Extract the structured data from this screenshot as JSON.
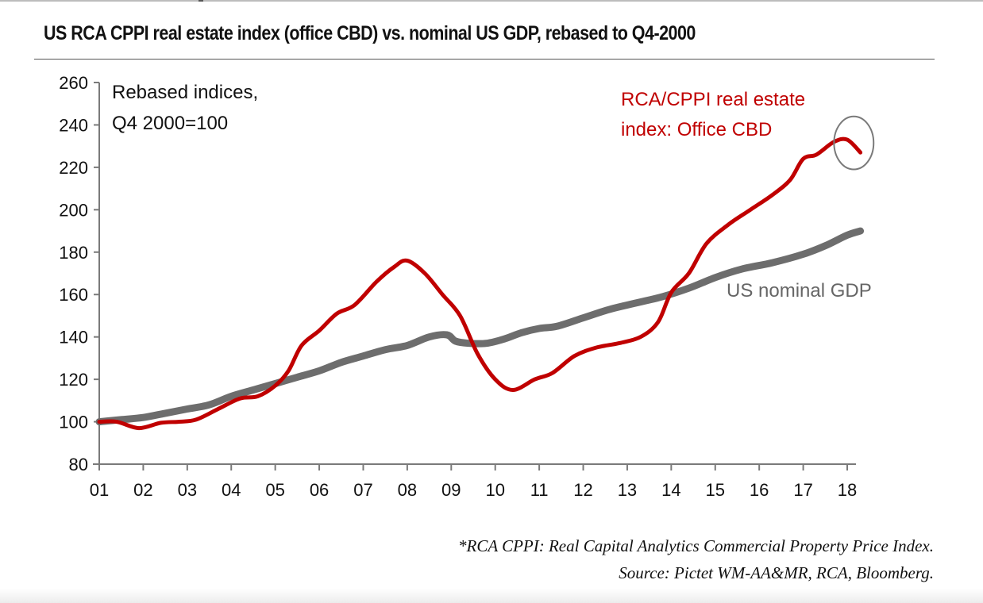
{
  "chart_data": {
    "type": "line",
    "title": "US RCA CPPI real estate index (office CBD) vs. nominal US GDP, rebased to Q4-2000",
    "subtitle_note": [
      "Rebased indices,",
      "Q4 2000=100"
    ],
    "xlabel": "",
    "ylabel": "",
    "x_tick_labels": [
      "01",
      "02",
      "03",
      "04",
      "05",
      "06",
      "07",
      "08",
      "09",
      "10",
      "11",
      "12",
      "13",
      "14",
      "15",
      "16",
      "17",
      "18"
    ],
    "x_ticks": [
      2001,
      2002,
      2003,
      2004,
      2005,
      2006,
      2007,
      2008,
      2009,
      2010,
      2011,
      2012,
      2013,
      2014,
      2015,
      2016,
      2017,
      2018
    ],
    "xlim": [
      2001,
      2018.2
    ],
    "y_ticks": [
      80,
      100,
      120,
      140,
      160,
      180,
      200,
      220,
      240,
      260
    ],
    "ylim": [
      80,
      260
    ],
    "grid": false,
    "series": [
      {
        "name": "RCA/CPPI real estate index: Office CBD",
        "label_lines": [
          "RCA/CPPI real estate",
          "index: Office CBD"
        ],
        "color": "#c00000",
        "x": [
          2001.0,
          2001.4,
          2001.9,
          2002.4,
          2002.8,
          2003.2,
          2003.7,
          2004.2,
          2004.6,
          2005.0,
          2005.3,
          2005.6,
          2006.0,
          2006.4,
          2006.8,
          2007.3,
          2007.7,
          2008.0,
          2008.4,
          2008.8,
          2009.2,
          2009.6,
          2010.0,
          2010.4,
          2010.9,
          2011.3,
          2011.8,
          2012.3,
          2012.8,
          2013.3,
          2013.7,
          2014.0,
          2014.4,
          2014.8,
          2015.3,
          2015.8,
          2016.3,
          2016.7,
          2017.0,
          2017.3,
          2017.7,
          2018.0,
          2018.3
        ],
        "values": [
          100,
          100,
          97,
          99.5,
          100,
          101,
          106,
          111,
          112,
          117,
          124,
          136,
          143,
          151,
          155,
          166,
          173,
          176,
          170,
          160,
          150,
          132,
          120,
          115,
          120,
          123,
          131,
          135,
          137,
          140,
          147,
          161,
          170,
          184,
          193,
          200,
          207,
          214,
          224,
          226,
          232,
          233,
          227
        ]
      },
      {
        "name": "US nominal GDP",
        "label_lines": [
          "US nominal GDP"
        ],
        "color": "#6d6d6d",
        "x": [
          2001.0,
          2001.5,
          2002.0,
          2002.5,
          2003.0,
          2003.5,
          2004.0,
          2004.5,
          2005.0,
          2005.5,
          2006.0,
          2006.5,
          2007.0,
          2007.5,
          2008.0,
          2008.5,
          2008.9,
          2009.1,
          2009.4,
          2009.8,
          2010.2,
          2010.6,
          2011.0,
          2011.4,
          2012.0,
          2012.6,
          2013.2,
          2013.8,
          2014.4,
          2015.0,
          2015.6,
          2016.3,
          2017.0,
          2017.5,
          2018.0,
          2018.3
        ],
        "values": [
          100,
          101,
          102,
          104,
          106,
          108,
          112,
          115,
          118,
          121,
          124,
          128,
          131,
          134,
          136,
          140,
          141,
          138,
          137,
          137,
          139,
          142,
          144,
          145,
          149,
          153,
          156,
          159,
          163,
          168,
          172,
          175,
          179,
          183,
          188,
          190
        ]
      }
    ],
    "annotations": [
      {
        "type": "ellipse",
        "description": "highlights recent decline in CPPI office CBD index",
        "x_range": [
          2017.7,
          2018.6
        ],
        "y_range": [
          219,
          244
        ]
      }
    ],
    "footnotes": [
      "*RCA CPPI: Real Capital Analytics Commercial Property Price Index.",
      "Source: Pictet WM-AA&MR, RCA, Bloomberg."
    ]
  }
}
